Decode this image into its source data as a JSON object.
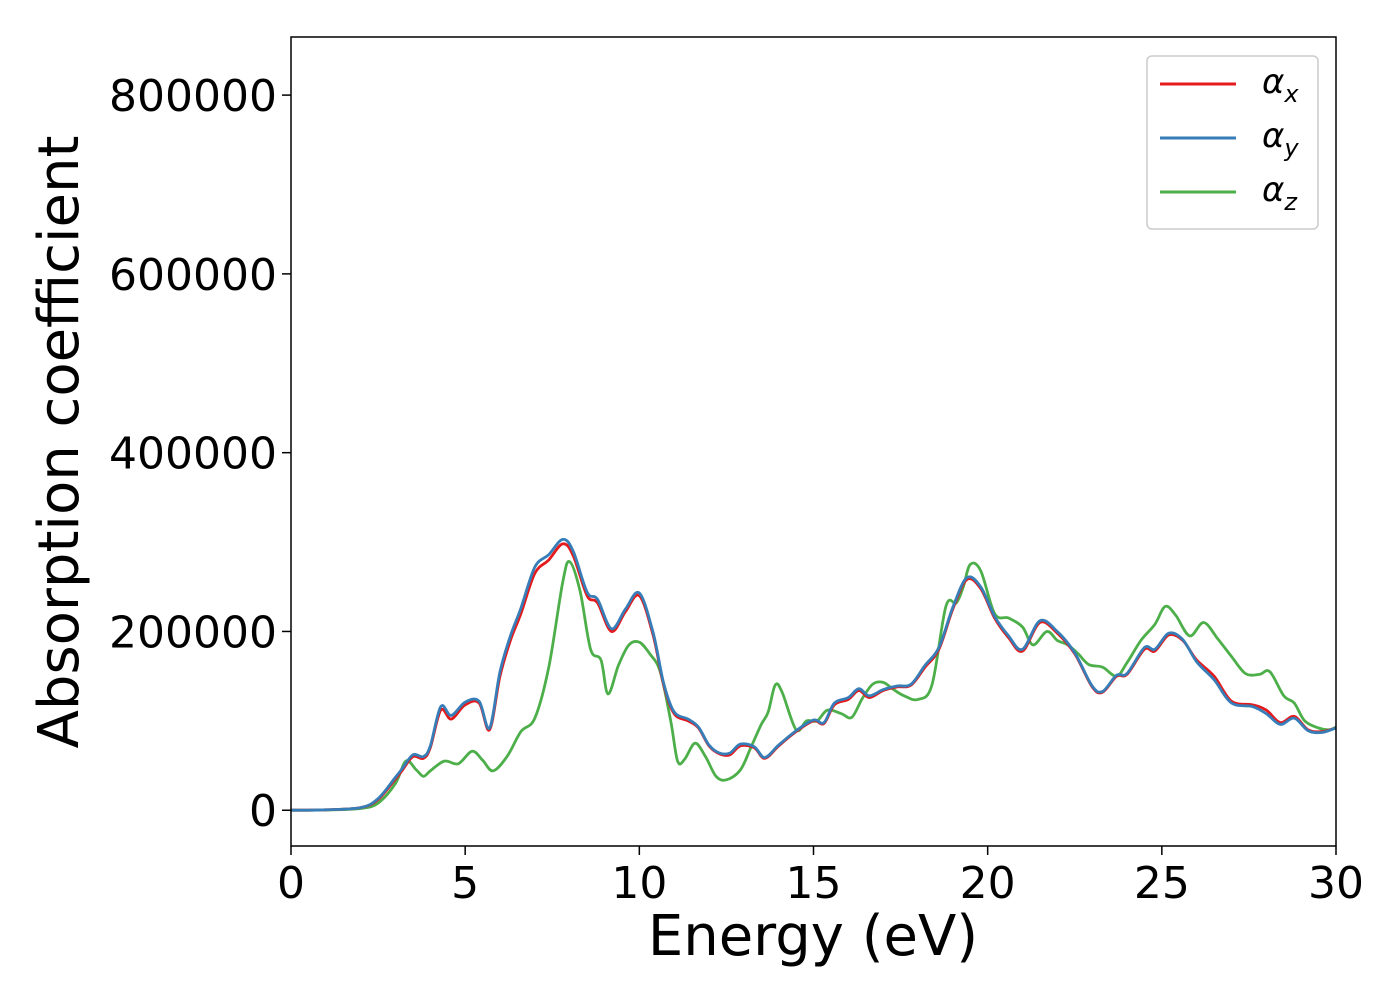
{
  "chart_data": {
    "type": "line",
    "title": "",
    "xlabel": "Energy (eV)",
    "ylabel": "Absorption coefficient",
    "xlim": [
      0,
      30
    ],
    "ylim": [
      -40000,
      865000
    ],
    "xticks": [
      0,
      5,
      10,
      15,
      20,
      25,
      30
    ],
    "yticks": [
      0,
      200000,
      400000,
      600000,
      800000
    ],
    "grid": false,
    "legend_position": "top-right",
    "series": [
      {
        "name": "α",
        "subscript": "x",
        "color": "#e41a1c",
        "points": [
          [
            0,
            0
          ],
          [
            1,
            500
          ],
          [
            2,
            3000
          ],
          [
            2.5,
            12000
          ],
          [
            3,
            35000
          ],
          [
            3.2,
            45000
          ],
          [
            3.5,
            60000
          ],
          [
            3.8,
            58000
          ],
          [
            4,
            70000
          ],
          [
            4.3,
            112000
          ],
          [
            4.6,
            102000
          ],
          [
            5,
            118000
          ],
          [
            5.4,
            120000
          ],
          [
            5.7,
            90000
          ],
          [
            6,
            150000
          ],
          [
            6.3,
            190000
          ],
          [
            6.6,
            220000
          ],
          [
            7,
            265000
          ],
          [
            7.4,
            280000
          ],
          [
            7.8,
            298000
          ],
          [
            8.1,
            285000
          ],
          [
            8.5,
            240000
          ],
          [
            8.8,
            232000
          ],
          [
            9.2,
            200000
          ],
          [
            9.6,
            222000
          ],
          [
            10,
            240000
          ],
          [
            10.4,
            195000
          ],
          [
            10.7,
            140000
          ],
          [
            11,
            108000
          ],
          [
            11.4,
            100000
          ],
          [
            11.7,
            92000
          ],
          [
            12,
            72000
          ],
          [
            12.3,
            63000
          ],
          [
            12.6,
            62000
          ],
          [
            12.9,
            72000
          ],
          [
            13.3,
            70000
          ],
          [
            13.6,
            58000
          ],
          [
            14,
            72000
          ],
          [
            14.5,
            88000
          ],
          [
            15,
            100000
          ],
          [
            15.3,
            97000
          ],
          [
            15.6,
            118000
          ],
          [
            16,
            124000
          ],
          [
            16.3,
            134000
          ],
          [
            16.6,
            126000
          ],
          [
            17,
            134000
          ],
          [
            17.4,
            138000
          ],
          [
            17.8,
            140000
          ],
          [
            18.2,
            160000
          ],
          [
            18.6,
            180000
          ],
          [
            19,
            225000
          ],
          [
            19.4,
            258000
          ],
          [
            19.8,
            248000
          ],
          [
            20.2,
            215000
          ],
          [
            20.6,
            193000
          ],
          [
            21,
            178000
          ],
          [
            21.5,
            210000
          ],
          [
            22,
            198000
          ],
          [
            22.5,
            175000
          ],
          [
            23,
            138000
          ],
          [
            23.3,
            132000
          ],
          [
            23.7,
            150000
          ],
          [
            24,
            152000
          ],
          [
            24.5,
            180000
          ],
          [
            24.8,
            178000
          ],
          [
            25.2,
            196000
          ],
          [
            25.6,
            190000
          ],
          [
            26,
            168000
          ],
          [
            26.5,
            150000
          ],
          [
            27,
            122000
          ],
          [
            27.6,
            118000
          ],
          [
            28,
            112000
          ],
          [
            28.4,
            98000
          ],
          [
            28.8,
            105000
          ],
          [
            29.2,
            90000
          ],
          [
            29.6,
            88000
          ],
          [
            30,
            92000
          ]
        ]
      },
      {
        "name": "α",
        "subscript": "y",
        "color": "#377eb8",
        "points": [
          [
            0,
            0
          ],
          [
            1,
            500
          ],
          [
            2,
            3000
          ],
          [
            2.5,
            13000
          ],
          [
            3,
            37000
          ],
          [
            3.2,
            47000
          ],
          [
            3.5,
            62000
          ],
          [
            3.8,
            60000
          ],
          [
            4,
            72000
          ],
          [
            4.3,
            116000
          ],
          [
            4.6,
            106000
          ],
          [
            5,
            121000
          ],
          [
            5.4,
            122000
          ],
          [
            5.7,
            92000
          ],
          [
            6,
            155000
          ],
          [
            6.3,
            195000
          ],
          [
            6.6,
            226000
          ],
          [
            7,
            272000
          ],
          [
            7.4,
            286000
          ],
          [
            7.8,
            303000
          ],
          [
            8.1,
            290000
          ],
          [
            8.5,
            244000
          ],
          [
            8.8,
            236000
          ],
          [
            9.2,
            203000
          ],
          [
            9.6,
            225000
          ],
          [
            10,
            243000
          ],
          [
            10.4,
            198000
          ],
          [
            10.7,
            142000
          ],
          [
            11,
            110000
          ],
          [
            11.4,
            102000
          ],
          [
            11.7,
            93000
          ],
          [
            12,
            73000
          ],
          [
            12.3,
            64000
          ],
          [
            12.6,
            64000
          ],
          [
            12.9,
            74000
          ],
          [
            13.3,
            71000
          ],
          [
            13.6,
            59000
          ],
          [
            14,
            73000
          ],
          [
            14.5,
            89000
          ],
          [
            15,
            101000
          ],
          [
            15.3,
            98000
          ],
          [
            15.6,
            120000
          ],
          [
            16,
            126000
          ],
          [
            16.3,
            136000
          ],
          [
            16.6,
            128000
          ],
          [
            17,
            135000
          ],
          [
            17.4,
            139000
          ],
          [
            17.8,
            141000
          ],
          [
            18.2,
            162000
          ],
          [
            18.6,
            182000
          ],
          [
            19,
            227000
          ],
          [
            19.4,
            260000
          ],
          [
            19.8,
            250000
          ],
          [
            20.2,
            217000
          ],
          [
            20.6,
            195000
          ],
          [
            21,
            180000
          ],
          [
            21.5,
            212000
          ],
          [
            22,
            200000
          ],
          [
            22.5,
            176000
          ],
          [
            23,
            139000
          ],
          [
            23.3,
            133000
          ],
          [
            23.7,
            151000
          ],
          [
            24,
            153000
          ],
          [
            24.5,
            182000
          ],
          [
            24.8,
            180000
          ],
          [
            25.2,
            198000
          ],
          [
            25.6,
            191000
          ],
          [
            26,
            166000
          ],
          [
            26.5,
            146000
          ],
          [
            27,
            120000
          ],
          [
            27.6,
            116000
          ],
          [
            28,
            108000
          ],
          [
            28.4,
            96000
          ],
          [
            28.8,
            103000
          ],
          [
            29.2,
            89000
          ],
          [
            29.6,
            87000
          ],
          [
            30,
            92000
          ]
        ]
      },
      {
        "name": "α",
        "subscript": "z",
        "color": "#4daf4a",
        "points": [
          [
            0,
            0
          ],
          [
            1,
            300
          ],
          [
            2,
            2000
          ],
          [
            2.5,
            8000
          ],
          [
            3,
            30000
          ],
          [
            3.3,
            55000
          ],
          [
            3.6,
            45000
          ],
          [
            3.8,
            38000
          ],
          [
            4,
            44000
          ],
          [
            4.4,
            55000
          ],
          [
            4.8,
            52000
          ],
          [
            5.2,
            66000
          ],
          [
            5.5,
            56000
          ],
          [
            5.8,
            44000
          ],
          [
            6.2,
            60000
          ],
          [
            6.6,
            88000
          ],
          [
            7,
            103000
          ],
          [
            7.4,
            160000
          ],
          [
            7.8,
            255000
          ],
          [
            8,
            278000
          ],
          [
            8.3,
            245000
          ],
          [
            8.6,
            180000
          ],
          [
            8.9,
            168000
          ],
          [
            9.1,
            130000
          ],
          [
            9.4,
            162000
          ],
          [
            9.7,
            185000
          ],
          [
            10,
            188000
          ],
          [
            10.3,
            175000
          ],
          [
            10.6,
            155000
          ],
          [
            10.9,
            100000
          ],
          [
            11.1,
            55000
          ],
          [
            11.3,
            57000
          ],
          [
            11.6,
            75000
          ],
          [
            11.9,
            60000
          ],
          [
            12.2,
            38000
          ],
          [
            12.5,
            34000
          ],
          [
            12.9,
            45000
          ],
          [
            13.2,
            70000
          ],
          [
            13.5,
            96000
          ],
          [
            13.7,
            110000
          ],
          [
            13.9,
            140000
          ],
          [
            14.1,
            132000
          ],
          [
            14.5,
            90000
          ],
          [
            14.8,
            100000
          ],
          [
            15.1,
            100000
          ],
          [
            15.4,
            112000
          ],
          [
            15.8,
            108000
          ],
          [
            16.1,
            104000
          ],
          [
            16.4,
            125000
          ],
          [
            16.7,
            141000
          ],
          [
            17,
            143000
          ],
          [
            17.3,
            135000
          ],
          [
            17.6,
            128000
          ],
          [
            18,
            124000
          ],
          [
            18.4,
            140000
          ],
          [
            18.8,
            228000
          ],
          [
            19.1,
            232000
          ],
          [
            19.3,
            250000
          ],
          [
            19.5,
            275000
          ],
          [
            19.8,
            268000
          ],
          [
            20.2,
            220000
          ],
          [
            20.6,
            215000
          ],
          [
            21,
            205000
          ],
          [
            21.3,
            185000
          ],
          [
            21.7,
            200000
          ],
          [
            22,
            190000
          ],
          [
            22.3,
            185000
          ],
          [
            22.6,
            175000
          ],
          [
            22.9,
            163000
          ],
          [
            23.3,
            160000
          ],
          [
            23.7,
            150000
          ],
          [
            24,
            165000
          ],
          [
            24.4,
            190000
          ],
          [
            24.8,
            208000
          ],
          [
            25.1,
            228000
          ],
          [
            25.4,
            218000
          ],
          [
            25.8,
            195000
          ],
          [
            26.2,
            210000
          ],
          [
            26.6,
            192000
          ],
          [
            27,
            172000
          ],
          [
            27.4,
            153000
          ],
          [
            27.8,
            152000
          ],
          [
            28.1,
            155000
          ],
          [
            28.5,
            128000
          ],
          [
            28.8,
            120000
          ],
          [
            29.1,
            100000
          ],
          [
            29.5,
            92000
          ],
          [
            29.8,
            90000
          ],
          [
            30,
            93000
          ]
        ]
      }
    ]
  }
}
